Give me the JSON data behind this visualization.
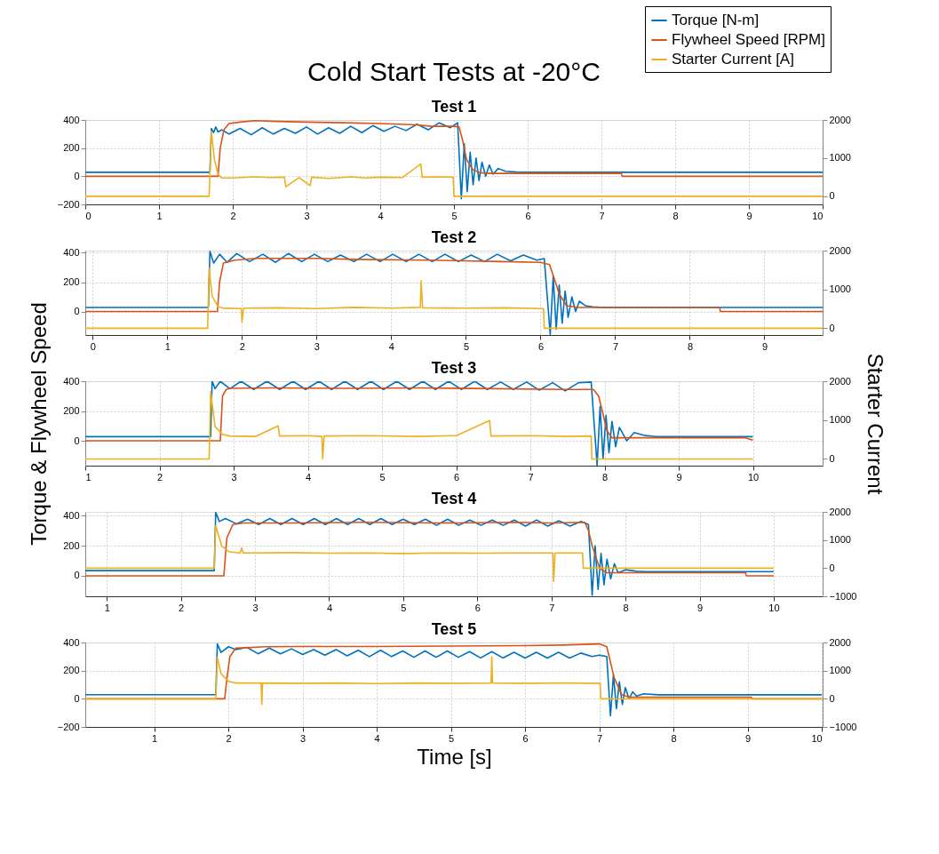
{
  "chart_data": [
    {
      "type": "line",
      "title": "Cold Start Tests at -20°C",
      "subtitle": "Test 1",
      "xlim": [
        0,
        10
      ],
      "xticks": [
        0,
        1,
        2,
        3,
        4,
        5,
        6,
        7,
        8,
        9,
        10
      ],
      "ylim": [
        -200,
        400
      ],
      "yticks": [
        -200,
        0,
        200,
        400
      ],
      "y2lim": [
        -213,
        2000
      ],
      "y2ticks": [
        0,
        1000,
        2000
      ],
      "grid": true,
      "legend": "top right",
      "series": [
        {
          "name": "Torque [N-m]",
          "color": "#0072bd",
          "x": [
            0,
            1.69,
            1.71,
            1.74,
            1.77,
            1.8,
            1.85,
            1.95,
            2.1,
            2.25,
            2.4,
            2.55,
            2.7,
            2.85,
            3.0,
            3.15,
            3.3,
            3.45,
            3.6,
            3.75,
            3.9,
            4.05,
            4.2,
            4.35,
            4.5,
            4.65,
            4.8,
            4.95,
            5.05,
            5.1,
            5.14,
            5.18,
            5.22,
            5.26,
            5.3,
            5.34,
            5.38,
            5.43,
            5.48,
            5.53,
            5.6,
            5.7,
            5.85,
            6.0,
            10
          ],
          "values": [
            28,
            28,
            340,
            310,
            350,
            315,
            330,
            300,
            340,
            295,
            345,
            300,
            340,
            305,
            350,
            300,
            345,
            305,
            355,
            310,
            360,
            320,
            355,
            325,
            370,
            330,
            380,
            345,
            380,
            -160,
            230,
            -110,
            170,
            -60,
            130,
            -30,
            100,
            0,
            80,
            15,
            55,
            35,
            30,
            28,
            28
          ]
        },
        {
          "name": "Flywheel Speed [RPM]",
          "color": "#d95319",
          "x": [
            0,
            1.8,
            1.83,
            1.88,
            1.95,
            2.1,
            2.3,
            2.6,
            3.0,
            3.5,
            4.0,
            4.5,
            4.7,
            5.0,
            5.07,
            5.12,
            5.17,
            5.25,
            5.35,
            5.5,
            7.27,
            7.28,
            10
          ],
          "values": [
            0,
            0,
            200,
            330,
            375,
            385,
            395,
            390,
            385,
            380,
            375,
            365,
            355,
            355,
            350,
            250,
            120,
            50,
            25,
            20,
            20,
            0,
            0
          ]
        },
        {
          "name": "Starter Current [A]",
          "color": "#edb120",
          "axis": "y2",
          "x": [
            0,
            1.68,
            1.71,
            1.75,
            1.8,
            1.85,
            2.0,
            2.3,
            2.5,
            2.7,
            2.72,
            2.9,
            3.05,
            3.07,
            3.3,
            3.6,
            3.8,
            4.0,
            4.3,
            4.55,
            4.57,
            4.8,
            4.99,
            5.0,
            10
          ],
          "values": [
            0,
            0,
            1700,
            980,
            580,
            480,
            480,
            510,
            490,
            500,
            250,
            490,
            280,
            500,
            470,
            510,
            480,
            500,
            490,
            850,
            500,
            510,
            500,
            0,
            0
          ]
        }
      ]
    },
    {
      "type": "line",
      "title": "Test 2",
      "xlim": [
        -0.1,
        9.78
      ],
      "xticks": [
        0,
        1,
        2,
        3,
        4,
        5,
        6,
        7,
        8,
        9
      ],
      "ylim": [
        -160,
        415
      ],
      "yticks": [
        0,
        200,
        400
      ],
      "y2lim": [
        -175,
        2010
      ],
      "y2ticks": [
        0,
        1000,
        2000
      ],
      "grid": true,
      "series": [
        {
          "color": "#0072bd",
          "x": [
            -0.1,
            1.55,
            1.57,
            1.62,
            1.7,
            1.8,
            1.93,
            2.1,
            2.28,
            2.45,
            2.62,
            2.8,
            2.97,
            3.15,
            3.32,
            3.5,
            3.67,
            3.85,
            4.02,
            4.2,
            4.37,
            4.55,
            4.72,
            4.9,
            5.07,
            5.25,
            5.42,
            5.6,
            5.77,
            5.95,
            6.05,
            6.13,
            6.17,
            6.21,
            6.25,
            6.29,
            6.33,
            6.37,
            6.42,
            6.47,
            6.52,
            6.6,
            6.7,
            6.85,
            7.0,
            9.78
          ],
          "values": [
            28,
            28,
            410,
            330,
            390,
            335,
            395,
            340,
            390,
            335,
            395,
            340,
            390,
            340,
            385,
            340,
            390,
            340,
            390,
            340,
            390,
            340,
            390,
            340,
            385,
            340,
            390,
            345,
            385,
            350,
            360,
            -155,
            240,
            -120,
            180,
            -80,
            140,
            -40,
            100,
            0,
            70,
            40,
            32,
            28,
            28,
            28
          ]
        },
        {
          "color": "#d95319",
          "x": [
            -0.1,
            1.67,
            1.7,
            1.75,
            1.9,
            2.2,
            3.0,
            3.5,
            4.5,
            5.5,
            6.0,
            6.12,
            6.2,
            6.25,
            6.35,
            6.5,
            8.4,
            8.41,
            9.78
          ],
          "values": [
            0,
            0,
            200,
            330,
            350,
            362,
            362,
            355,
            350,
            340,
            335,
            320,
            200,
            120,
            40,
            28,
            28,
            0,
            0
          ]
        },
        {
          "color": "#edb120",
          "axis": "y2",
          "x": [
            -0.1,
            1.54,
            1.56,
            1.6,
            1.68,
            1.75,
            1.99,
            2.0,
            2.02,
            2.5,
            3.0,
            3.5,
            4.0,
            4.39,
            4.4,
            4.42,
            5.0,
            5.5,
            6.04,
            6.05,
            9.78
          ],
          "values": [
            0,
            0,
            1560,
            830,
            560,
            520,
            510,
            160,
            520,
            530,
            510,
            540,
            520,
            540,
            1230,
            530,
            520,
            530,
            510,
            0,
            0
          ]
        }
      ]
    },
    {
      "type": "line",
      "title": "Test 3",
      "ylabel": "Torque & Flywheel Speed",
      "y2label": "Starter Current",
      "xlim": [
        1,
        10.94
      ],
      "xticks": [
        1,
        2,
        3,
        4,
        5,
        6,
        7,
        8,
        9,
        10
      ],
      "ylim": [
        -167,
        400
      ],
      "yticks": [
        0,
        200,
        400
      ],
      "y2lim": [
        -173,
        2000
      ],
      "y2ticks": [
        0,
        1000,
        2000
      ],
      "grid": true,
      "series": [
        {
          "color": "#0072bd",
          "x": [
            1,
            2.69,
            2.71,
            2.75,
            2.82,
            2.95,
            3.1,
            3.27,
            3.45,
            3.62,
            3.8,
            3.97,
            4.15,
            4.32,
            4.5,
            4.67,
            4.85,
            5.02,
            5.2,
            5.37,
            5.55,
            5.72,
            5.9,
            6.07,
            6.25,
            6.42,
            6.6,
            6.77,
            6.95,
            7.12,
            7.3,
            7.47,
            7.65,
            7.82,
            7.9,
            7.94,
            7.98,
            8.02,
            8.06,
            8.1,
            8.15,
            8.2,
            8.3,
            8.4,
            8.55,
            8.7,
            10
          ],
          "values": [
            28,
            28,
            400,
            350,
            400,
            350,
            400,
            345,
            400,
            345,
            400,
            345,
            400,
            345,
            400,
            345,
            400,
            345,
            400,
            345,
            400,
            345,
            400,
            345,
            400,
            345,
            395,
            345,
            395,
            340,
            390,
            335,
            390,
            395,
            -165,
            230,
            -120,
            170,
            -80,
            130,
            -40,
            90,
            0,
            55,
            35,
            28,
            28
          ]
        },
        {
          "color": "#d95319",
          "x": [
            1,
            2.82,
            2.85,
            2.9,
            2.95,
            3.5,
            4.5,
            5.5,
            6.5,
            7.5,
            7.85,
            7.92,
            7.97,
            8.03,
            8.1,
            9.9,
            10
          ],
          "values": [
            0,
            0,
            300,
            345,
            352,
            355,
            352,
            355,
            350,
            345,
            345,
            300,
            200,
            70,
            20,
            20,
            5
          ]
        },
        {
          "color": "#edb120",
          "axis": "y2",
          "x": [
            1,
            2.67,
            2.69,
            2.75,
            2.85,
            2.95,
            3.3,
            3.6,
            3.62,
            4.0,
            4.19,
            4.2,
            4.22,
            4.8,
            5.5,
            6.0,
            6.45,
            6.47,
            7.0,
            7.5,
            7.82,
            7.83,
            10
          ],
          "values": [
            0,
            0,
            1730,
            830,
            630,
            590,
            580,
            850,
            590,
            600,
            580,
            0,
            590,
            600,
            580,
            600,
            990,
            590,
            600,
            580,
            590,
            0,
            0
          ]
        }
      ]
    },
    {
      "type": "line",
      "title": "Test 4",
      "xlim": [
        0.71,
        10.66
      ],
      "xticks": [
        1,
        2,
        3,
        4,
        5,
        6,
        7,
        8,
        9,
        10
      ],
      "ylim": [
        -136,
        424
      ],
      "yticks": [
        0,
        200,
        400
      ],
      "y2lim": [
        -1000,
        2000
      ],
      "y2ticks": [
        -1000,
        0,
        1000,
        2000
      ],
      "grid": true,
      "series": [
        {
          "color": "#0072bd",
          "x": [
            0.71,
            2.45,
            2.47,
            2.52,
            2.6,
            2.75,
            2.9,
            3.05,
            3.2,
            3.35,
            3.5,
            3.65,
            3.8,
            3.95,
            4.1,
            4.25,
            4.4,
            4.55,
            4.7,
            4.85,
            5.0,
            5.15,
            5.3,
            5.45,
            5.6,
            5.75,
            5.9,
            6.05,
            6.2,
            6.35,
            6.5,
            6.65,
            6.8,
            6.95,
            7.1,
            7.25,
            7.4,
            7.5,
            7.55,
            7.59,
            7.63,
            7.67,
            7.71,
            7.75,
            7.8,
            7.85,
            7.9,
            8.0,
            8.15,
            8.3,
            10
          ],
          "values": [
            34,
            34,
            420,
            360,
            380,
            345,
            375,
            340,
            380,
            340,
            380,
            340,
            380,
            340,
            380,
            340,
            380,
            340,
            380,
            340,
            375,
            340,
            375,
            335,
            375,
            335,
            370,
            335,
            370,
            335,
            370,
            330,
            370,
            330,
            365,
            330,
            360,
            340,
            -130,
            200,
            -90,
            150,
            -60,
            110,
            -20,
            80,
            20,
            40,
            30,
            28,
            28
          ]
        },
        {
          "color": "#d95319",
          "x": [
            0.71,
            2.58,
            2.62,
            2.7,
            2.85,
            3.5,
            4.5,
            5.5,
            6.5,
            7.0,
            7.45,
            7.5,
            7.55,
            7.65,
            7.75,
            9.62,
            9.63,
            10
          ],
          "values": [
            0,
            0,
            250,
            340,
            350,
            350,
            355,
            350,
            355,
            350,
            355,
            300,
            200,
            50,
            20,
            20,
            0,
            0
          ]
        },
        {
          "color": "#edb120",
          "axis": "y2",
          "x": [
            0.71,
            2.45,
            2.47,
            2.55,
            2.65,
            2.8,
            2.82,
            2.84,
            3.5,
            4.0,
            4.5,
            5.0,
            5.5,
            6.0,
            6.5,
            7.02,
            7.03,
            7.05,
            7.42,
            7.43,
            10
          ],
          "values": [
            0,
            0,
            1510,
            790,
            580,
            540,
            720,
            540,
            550,
            530,
            540,
            520,
            540,
            530,
            540,
            540,
            -470,
            540,
            540,
            0,
            0
          ]
        }
      ]
    },
    {
      "type": "line",
      "title": "Test 5",
      "xlabel": "Time [s]",
      "xlim": [
        0.07,
        10.01
      ],
      "xticks": [
        1,
        2,
        3,
        4,
        5,
        6,
        7,
        8,
        9,
        10
      ],
      "ylim": [
        -200,
        400
      ],
      "yticks": [
        -200,
        0,
        200,
        400
      ],
      "y2lim": [
        -1000,
        2000
      ],
      "y2ticks": [
        -1000,
        0,
        1000,
        2000
      ],
      "grid": true,
      "series": [
        {
          "color": "#0072bd",
          "x": [
            0.07,
            1.83,
            1.85,
            1.9,
            2.0,
            2.1,
            2.25,
            2.4,
            2.55,
            2.7,
            2.85,
            3.0,
            3.15,
            3.3,
            3.45,
            3.6,
            3.75,
            3.9,
            4.05,
            4.2,
            4.35,
            4.5,
            4.65,
            4.8,
            4.95,
            5.1,
            5.25,
            5.4,
            5.55,
            5.7,
            5.85,
            6.0,
            6.15,
            6.3,
            6.45,
            6.6,
            6.75,
            6.9,
            7.0,
            7.1,
            7.15,
            7.19,
            7.23,
            7.27,
            7.31,
            7.35,
            7.4,
            7.45,
            7.5,
            7.6,
            7.8,
            10
          ],
          "values": [
            29,
            29,
            390,
            330,
            370,
            350,
            365,
            320,
            360,
            320,
            355,
            315,
            350,
            310,
            350,
            305,
            345,
            300,
            345,
            300,
            340,
            295,
            340,
            295,
            340,
            295,
            335,
            290,
            335,
            290,
            330,
            290,
            330,
            290,
            330,
            290,
            325,
            300,
            310,
            300,
            -120,
            170,
            -70,
            120,
            -40,
            80,
            0,
            50,
            20,
            35,
            28,
            28
          ]
        },
        {
          "color": "#d95319",
          "x": [
            0.07,
            1.95,
            1.98,
            2.02,
            2.1,
            2.5,
            3.0,
            4.0,
            5.0,
            6.0,
            6.5,
            7.0,
            7.1,
            7.2,
            7.3,
            7.4,
            9.05,
            9.06,
            10
          ],
          "values": [
            0,
            0,
            150,
            300,
            360,
            370,
            372,
            372,
            375,
            378,
            382,
            390,
            370,
            150,
            30,
            11,
            11,
            0,
            0
          ]
        },
        {
          "color": "#edb120",
          "axis": "y2",
          "x": [
            0.07,
            1.83,
            1.85,
            1.9,
            2.0,
            2.1,
            2.44,
            2.45,
            2.46,
            3.0,
            3.5,
            4.0,
            4.5,
            5.0,
            5.54,
            5.55,
            5.56,
            6.0,
            6.5,
            7.01,
            7.02,
            10
          ],
          "values": [
            0,
            0,
            1470,
            890,
            620,
            560,
            560,
            -200,
            560,
            550,
            560,
            540,
            560,
            550,
            560,
            1490,
            560,
            550,
            560,
            550,
            0,
            0
          ]
        }
      ]
    }
  ]
}
